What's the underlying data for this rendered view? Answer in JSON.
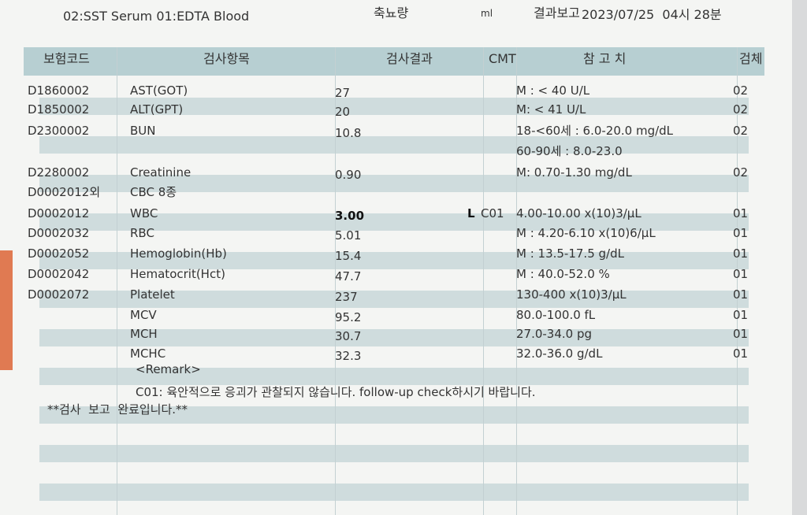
{
  "header": {
    "tubes": "02:SST Serum 01:EDTA Blood",
    "urine_label": "축뇨량",
    "unit": "ml",
    "report_label": "결과보고",
    "report_time": "2023/07/25  04시 28분"
  },
  "table": {
    "columns": [
      "보험코드",
      "검사항목",
      "검사결과",
      "CMT",
      "참 고 치",
      "검체"
    ],
    "rows": [
      {
        "code": "D1860002",
        "item": "AST(GOT)",
        "result": "27",
        "ref": "M : < 40 U/L",
        "specimen": "02"
      },
      {
        "code": "D1850002",
        "item": "ALT(GPT)",
        "result": "20",
        "ref": "M: < 41 U/L",
        "specimen": "02"
      },
      {
        "code": "D2300002",
        "item": "BUN",
        "result": "10.8",
        "ref": "18-<60세 : 6.0-20.0 mg/dL",
        "specimen": "02"
      },
      {
        "ref": "60-90세 : 8.0-23.0"
      },
      {
        "code": "D2280002",
        "item": "Creatinine",
        "result": "0.90",
        "ref": "M: 0.70-1.30 mg/dL",
        "specimen": "02"
      },
      {
        "code": "D0002012외",
        "item": "CBC 8종"
      },
      {
        "code": "D0002012",
        "item": "WBC",
        "result": "3.00",
        "flag": "L",
        "cmt": "C01",
        "ref": "4.00-10.00 x(10)3/µL",
        "specimen": "01"
      },
      {
        "code": "D0002032",
        "item": "RBC",
        "result": "5.01",
        "ref": "M : 4.20-6.10 x(10)6/µL",
        "specimen": "01"
      },
      {
        "code": "D0002052",
        "item": "Hemoglobin(Hb)",
        "result": "15.4",
        "ref": "M : 13.5-17.5 g/dL",
        "specimen": "01"
      },
      {
        "code": "D0002042",
        "item": "Hematocrit(Hct)",
        "result": "47.7",
        "ref": "M : 40.0-52.0 %",
        "specimen": "01"
      },
      {
        "code": "D0002072",
        "item": "Platelet",
        "result": "237",
        "ref": "130-400 x(10)3/µL",
        "specimen": "01"
      },
      {
        "item": "MCV",
        "result": "95.2",
        "ref": "80.0-100.0 fL",
        "specimen": "01"
      },
      {
        "item": "MCH",
        "result": "30.7",
        "ref": "27.0-34.0 pg",
        "specimen": "01"
      },
      {
        "item": "MCHC",
        "result": "32.3",
        "ref": "32.0-36.0 g/dL",
        "specimen": "01"
      }
    ]
  },
  "remark": {
    "title": "<Remark>",
    "text": "C01: 육안적으로 응괴가 관찰되지 않습니다. follow-up check하시기 바랍니다."
  },
  "footer": "**검사  보고  완료입니다.**"
}
